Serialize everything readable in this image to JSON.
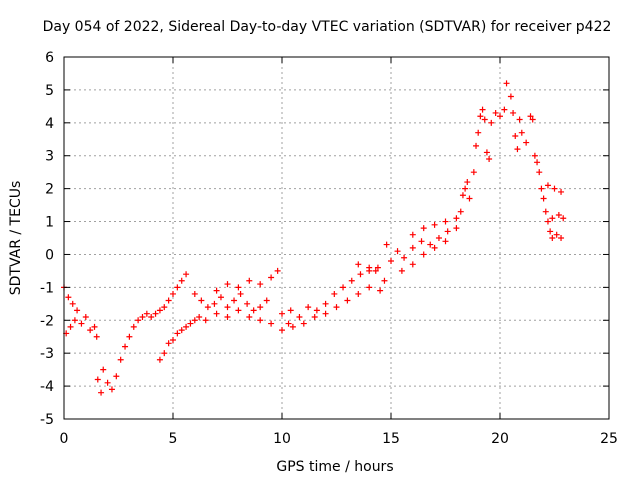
{
  "chart_data": {
    "type": "scatter",
    "title": "Day 054 of 2022, Sidereal Day-to-day VTEC variation (SDTVAR) for receiver p422",
    "xlabel": "GPS time / hours",
    "ylabel": "SDTVAR / TECUs",
    "xlim": [
      0,
      25
    ],
    "ylim": [
      -5,
      6
    ],
    "xticks": [
      0,
      5,
      10,
      15,
      20,
      25
    ],
    "yticks": [
      -5,
      -4,
      -3,
      -2,
      -1,
      0,
      1,
      2,
      3,
      4,
      5,
      6
    ],
    "grid": true,
    "marker": "+",
    "color": "#ff0000",
    "series": [
      {
        "name": "SDTVAR",
        "points": [
          [
            0.0,
            -1.0
          ],
          [
            0.1,
            -2.4
          ],
          [
            0.2,
            -1.3
          ],
          [
            0.3,
            -2.2
          ],
          [
            0.4,
            -1.5
          ],
          [
            0.5,
            -2.0
          ],
          [
            0.6,
            -1.7
          ],
          [
            0.8,
            -2.1
          ],
          [
            1.0,
            -1.9
          ],
          [
            1.2,
            -2.3
          ],
          [
            1.4,
            -2.2
          ],
          [
            1.5,
            -2.5
          ],
          [
            1.55,
            -3.8
          ],
          [
            1.7,
            -4.2
          ],
          [
            1.8,
            -3.5
          ],
          [
            2.0,
            -3.9
          ],
          [
            2.2,
            -4.1
          ],
          [
            2.4,
            -3.7
          ],
          [
            2.6,
            -3.2
          ],
          [
            2.8,
            -2.8
          ],
          [
            3.0,
            -2.5
          ],
          [
            3.2,
            -2.2
          ],
          [
            3.4,
            -2.0
          ],
          [
            3.6,
            -1.9
          ],
          [
            3.8,
            -1.8
          ],
          [
            4.0,
            -1.9
          ],
          [
            4.2,
            -1.8
          ],
          [
            4.4,
            -1.7
          ],
          [
            4.6,
            -1.6
          ],
          [
            4.8,
            -1.4
          ],
          [
            5.0,
            -1.2
          ],
          [
            5.2,
            -1.0
          ],
          [
            5.4,
            -0.8
          ],
          [
            5.6,
            -0.6
          ],
          [
            4.4,
            -3.2
          ],
          [
            4.6,
            -3.0
          ],
          [
            4.8,
            -2.7
          ],
          [
            5.0,
            -2.6
          ],
          [
            5.2,
            -2.4
          ],
          [
            5.4,
            -2.3
          ],
          [
            5.6,
            -2.2
          ],
          [
            5.8,
            -2.1
          ],
          [
            6.0,
            -2.0
          ],
          [
            6.2,
            -1.9
          ],
          [
            6.0,
            -1.2
          ],
          [
            6.3,
            -1.4
          ],
          [
            6.6,
            -1.6
          ],
          [
            6.9,
            -1.5
          ],
          [
            7.2,
            -1.3
          ],
          [
            7.5,
            -1.6
          ],
          [
            7.8,
            -1.4
          ],
          [
            8.1,
            -1.2
          ],
          [
            8.4,
            -1.5
          ],
          [
            8.7,
            -1.7
          ],
          [
            9.0,
            -1.6
          ],
          [
            9.3,
            -1.4
          ],
          [
            6.5,
            -2.0
          ],
          [
            7.0,
            -1.8
          ],
          [
            7.5,
            -1.9
          ],
          [
            8.0,
            -1.7
          ],
          [
            8.5,
            -1.9
          ],
          [
            9.0,
            -2.0
          ],
          [
            9.5,
            -2.1
          ],
          [
            10.0,
            -2.3
          ],
          [
            10.3,
            -2.1
          ],
          [
            7.0,
            -1.1
          ],
          [
            7.5,
            -0.9
          ],
          [
            8.0,
            -1.0
          ],
          [
            8.5,
            -0.8
          ],
          [
            9.0,
            -0.9
          ],
          [
            9.5,
            -0.7
          ],
          [
            9.8,
            -0.5
          ],
          [
            10.0,
            -1.8
          ],
          [
            10.4,
            -1.7
          ],
          [
            10.8,
            -1.9
          ],
          [
            11.2,
            -1.6
          ],
          [
            11.6,
            -1.7
          ],
          [
            12.0,
            -1.5
          ],
          [
            12.4,
            -1.2
          ],
          [
            12.8,
            -1.0
          ],
          [
            13.2,
            -0.8
          ],
          [
            13.6,
            -0.6
          ],
          [
            14.0,
            -0.5
          ],
          [
            14.4,
            -0.4
          ],
          [
            10.5,
            -2.2
          ],
          [
            11.0,
            -2.1
          ],
          [
            11.5,
            -1.9
          ],
          [
            12.0,
            -1.8
          ],
          [
            12.5,
            -1.6
          ],
          [
            13.0,
            -1.4
          ],
          [
            13.5,
            -1.2
          ],
          [
            14.0,
            -1.0
          ],
          [
            13.5,
            -0.3
          ],
          [
            14.0,
            -0.4
          ],
          [
            14.3,
            -0.5
          ],
          [
            14.5,
            -1.1
          ],
          [
            14.7,
            -0.8
          ],
          [
            14.8,
            0.3
          ],
          [
            15.0,
            -0.2
          ],
          [
            15.3,
            0.1
          ],
          [
            15.6,
            -0.1
          ],
          [
            16.0,
            0.2
          ],
          [
            16.4,
            0.4
          ],
          [
            16.8,
            0.3
          ],
          [
            17.2,
            0.5
          ],
          [
            17.6,
            0.7
          ],
          [
            18.0,
            0.8
          ],
          [
            15.5,
            -0.5
          ],
          [
            16.0,
            -0.3
          ],
          [
            16.5,
            0.0
          ],
          [
            17.0,
            0.2
          ],
          [
            17.5,
            0.4
          ],
          [
            16.0,
            0.6
          ],
          [
            16.5,
            0.8
          ],
          [
            17.0,
            0.9
          ],
          [
            17.5,
            1.0
          ],
          [
            18.0,
            1.1
          ],
          [
            18.2,
            1.3
          ],
          [
            18.3,
            1.8
          ],
          [
            18.4,
            2.0
          ],
          [
            18.5,
            2.2
          ],
          [
            18.6,
            1.7
          ],
          [
            18.8,
            2.5
          ],
          [
            18.9,
            3.3
          ],
          [
            19.0,
            3.7
          ],
          [
            19.1,
            4.2
          ],
          [
            19.2,
            4.4
          ],
          [
            19.3,
            4.1
          ],
          [
            19.4,
            3.1
          ],
          [
            19.5,
            2.9
          ],
          [
            19.6,
            4.0
          ],
          [
            19.8,
            4.3
          ],
          [
            20.0,
            4.2
          ],
          [
            20.2,
            4.4
          ],
          [
            20.3,
            5.2
          ],
          [
            20.5,
            4.8
          ],
          [
            20.6,
            4.3
          ],
          [
            20.7,
            3.6
          ],
          [
            20.8,
            3.2
          ],
          [
            20.9,
            4.1
          ],
          [
            21.0,
            3.7
          ],
          [
            21.2,
            3.4
          ],
          [
            21.4,
            4.2
          ],
          [
            21.5,
            4.1
          ],
          [
            21.6,
            3.0
          ],
          [
            21.7,
            2.8
          ],
          [
            21.8,
            2.5
          ],
          [
            21.9,
            2.0
          ],
          [
            22.0,
            1.7
          ],
          [
            22.1,
            1.3
          ],
          [
            22.2,
            1.0
          ],
          [
            22.3,
            0.7
          ],
          [
            22.4,
            0.5
          ],
          [
            22.6,
            0.6
          ],
          [
            22.8,
            0.5
          ],
          [
            22.2,
            2.1
          ],
          [
            22.5,
            2.0
          ],
          [
            22.8,
            1.9
          ],
          [
            22.4,
            1.1
          ],
          [
            22.7,
            1.2
          ],
          [
            22.9,
            1.1
          ]
        ]
      }
    ]
  }
}
